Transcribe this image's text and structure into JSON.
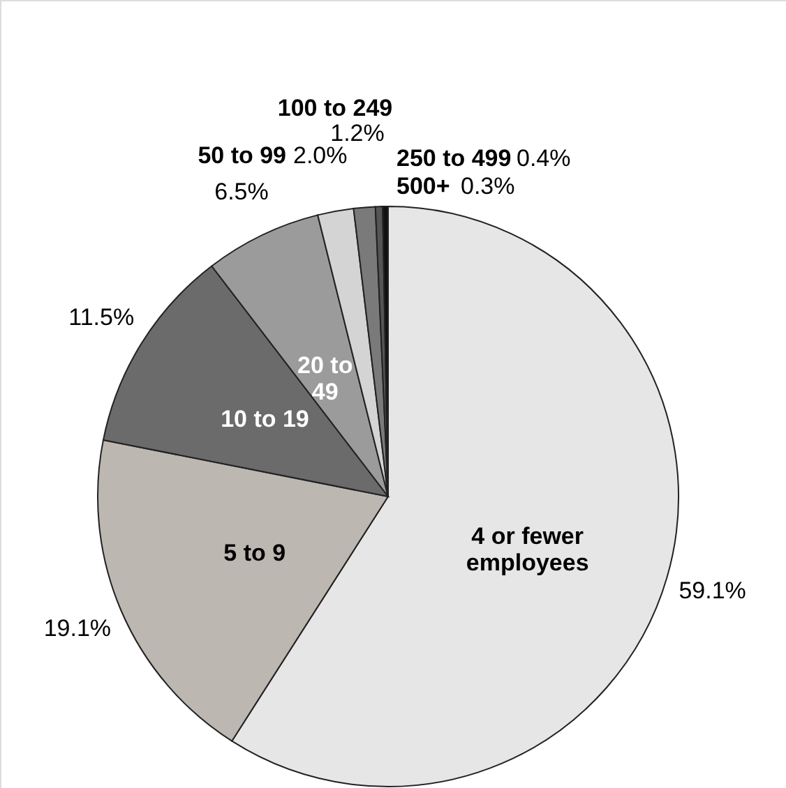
{
  "chart_data": {
    "type": "pie",
    "categories": [
      "4 or fewer employees",
      "5 to 9",
      "10 to 19",
      "20 to 49",
      "50 to 99",
      "100 to 249",
      "250 to 499",
      "500+"
    ],
    "values": [
      59.1,
      19.1,
      11.5,
      6.5,
      2.0,
      1.2,
      0.4,
      0.3
    ],
    "value_labels": [
      "59.1%",
      "19.1%",
      "11.5%",
      "6.5%",
      "2.0%",
      "1.2%",
      "0.4%",
      "0.3%"
    ],
    "colors": [
      "#e6e6e6",
      "#bdb7b1",
      "#6b6b6b",
      "#9b9b9b",
      "#d4d4d4",
      "#7a7a7a",
      "#555555",
      "#111111"
    ]
  }
}
